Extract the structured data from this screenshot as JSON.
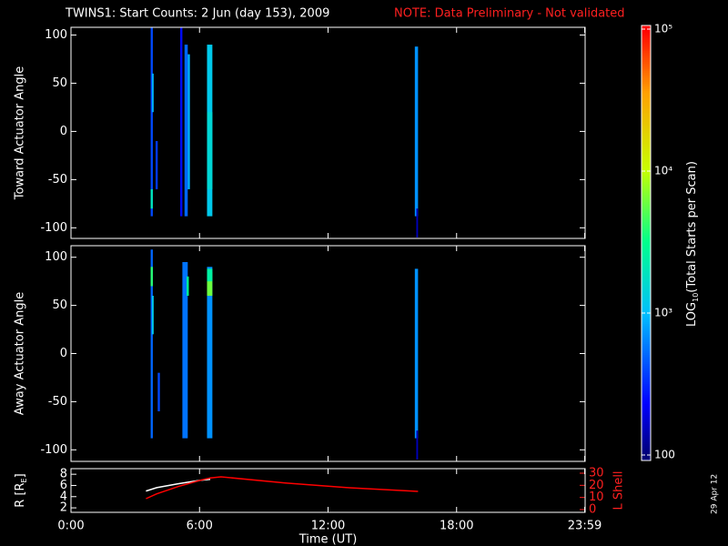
{
  "header": {
    "title": "TWINS1: Start Counts:  2 Jun (day 153), 2009",
    "note": "NOTE: Data Preliminary - Not validated"
  },
  "date_stamp": "29 Apr 12",
  "colorbar": {
    "label": [
      "LOG",
      "10",
      "(Total Starts per Scan)"
    ],
    "lim": [
      100,
      100000
    ],
    "log": true,
    "ticks": [
      {
        "value": 100000,
        "label": "10⁵"
      },
      {
        "value": 10000,
        "label": "10⁴"
      },
      {
        "value": 1000,
        "label": "10³"
      },
      100
    ]
  },
  "chart_data": [
    {
      "type": "spectrogram",
      "ylabel": "Toward Actuator Angle",
      "ylim": [
        -111,
        108
      ],
      "yticks": [
        -100,
        -50,
        0,
        50,
        100
      ],
      "strips": [
        {
          "x": [
            3.72,
            3.82
          ],
          "y": [
            -88,
            108
          ],
          "value": 400
        },
        {
          "x": [
            3.72,
            3.82
          ],
          "y": [
            -80,
            -60
          ],
          "value": 2000
        },
        {
          "x": [
            3.78,
            3.86
          ],
          "y": [
            20,
            60
          ],
          "value": 900
        },
        {
          "x": [
            3.95,
            4.05
          ],
          "y": [
            -60,
            -10
          ],
          "value": 350
        },
        {
          "x": [
            5.1,
            5.2
          ],
          "y": [
            -88,
            108
          ],
          "value": 250
        },
        {
          "x": [
            5.3,
            5.45
          ],
          "y": [
            -88,
            90
          ],
          "value": 500
        },
        {
          "x": [
            5.45,
            5.55
          ],
          "y": [
            -60,
            80
          ],
          "value": 900
        },
        {
          "x": [
            6.35,
            6.6
          ],
          "y": [
            -88,
            90
          ],
          "value": 1200
        },
        {
          "x": [
            6.35,
            6.6
          ],
          "y": [
            -60,
            20
          ],
          "value": 1500
        },
        {
          "x": [
            16.05,
            16.2
          ],
          "y": [
            -88,
            88
          ],
          "value": 700
        },
        {
          "x": [
            16.12,
            16.2
          ],
          "y": [
            -110,
            -80
          ],
          "value": 150
        }
      ]
    },
    {
      "type": "spectrogram",
      "ylabel": "Away Actuator Angle",
      "ylim": [
        -112,
        112
      ],
      "yticks": [
        -100,
        -50,
        0,
        50,
        100
      ],
      "strips": [
        {
          "x": [
            3.72,
            3.82
          ],
          "y": [
            -88,
            108
          ],
          "value": 500
        },
        {
          "x": [
            3.72,
            3.82
          ],
          "y": [
            70,
            90
          ],
          "value": 4000
        },
        {
          "x": [
            3.78,
            3.86
          ],
          "y": [
            20,
            60
          ],
          "value": 1200
        },
        {
          "x": [
            4.05,
            4.15
          ],
          "y": [
            -60,
            -20
          ],
          "value": 400
        },
        {
          "x": [
            5.2,
            5.45
          ],
          "y": [
            -88,
            95
          ],
          "value": 550
        },
        {
          "x": [
            5.4,
            5.5
          ],
          "y": [
            60,
            80
          ],
          "value": 3000
        },
        {
          "x": [
            6.35,
            6.6
          ],
          "y": [
            -88,
            90
          ],
          "value": 700
        },
        {
          "x": [
            6.35,
            6.6
          ],
          "y": [
            60,
            85
          ],
          "value": 6000
        },
        {
          "x": [
            6.35,
            6.6
          ],
          "y": [
            75,
            88
          ],
          "value": 2500
        },
        {
          "x": [
            16.05,
            16.2
          ],
          "y": [
            -88,
            88
          ],
          "value": 700
        },
        {
          "x": [
            16.12,
            16.2
          ],
          "y": [
            -110,
            -80
          ],
          "value": 150
        }
      ]
    },
    {
      "type": "line",
      "xlabel": "Time (UT)",
      "ylabel": [
        "R [R",
        "E",
        "]"
      ],
      "y2label": "L Shell",
      "xlim": [
        0,
        24
      ],
      "xticks": [
        {
          "value": 0,
          "label": "0:00"
        },
        {
          "value": 6,
          "label": "6:00"
        },
        {
          "value": 12,
          "label": "12:00"
        },
        {
          "value": 18,
          "label": "18:00"
        },
        {
          "value": 23.98,
          "label": "23:59"
        }
      ],
      "ylim": [
        1.2,
        9
      ],
      "yticks": [
        2,
        4,
        6,
        8
      ],
      "y2lim": [
        -2.25,
        33.75
      ],
      "y2ticks": [
        0,
        10,
        20,
        30
      ],
      "x": [
        3.5,
        4,
        5,
        6,
        6.5,
        7,
        10,
        13,
        16.2
      ],
      "series": [
        {
          "name": "R",
          "color": "#ffffff",
          "values": [
            5.0,
            5.6,
            6.3,
            6.9,
            7.1,
            null,
            null,
            null,
            null
          ]
        },
        {
          "name": "L Shell",
          "color": "#ff0000",
          "axis": "y2",
          "values": [
            9,
            13,
            19,
            24,
            26,
            27,
            22,
            18,
            15
          ]
        }
      ]
    }
  ]
}
